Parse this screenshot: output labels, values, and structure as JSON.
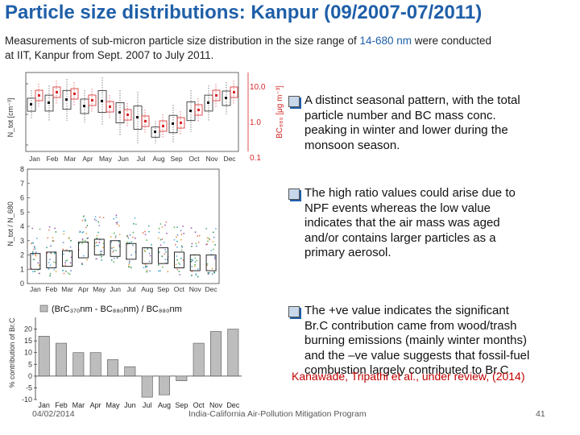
{
  "title": "Particle size distributions: Kanpur (09/2007-07/2011)",
  "intro": {
    "line1_before": "Measurements of sub-micron particle size distribution in the size range of ",
    "line1_highlight": "14-680 nm",
    "line1_after": " were conducted",
    "line2": "at IIT, Kanpur from Sept. 2007 to July 2011."
  },
  "bullets": [
    {
      "lines": [
        "A distinct seasonal pattern, with the total",
        "particle number and BC mass conc.",
        "peaking in winter and lower during the",
        "monsoon season."
      ]
    },
    {
      "lines": [
        "The high ratio values could arise due to",
        "NPF events whereas the low value",
        "indicates that the air mass was aged",
        "and/or contains larger particles as a",
        "primary aerosol."
      ]
    },
    {
      "lines": [
        "The +ve value indicates the significant",
        "Br.C contribution came from wood/trash",
        "burning emissions (mainly winter months)",
        "and the –ve value suggests that fossil-fuel",
        "combustion largely contributed to Br.C"
      ]
    }
  ],
  "citation": "Kanawade, Tripathi et al., under review, (2014)",
  "footer": {
    "date": "04/02/2014",
    "program": "India-California Air-Pollution Mitigation Program",
    "page": "41"
  },
  "months": [
    "Jan",
    "Feb",
    "Mar",
    "Apr",
    "May",
    "Jun",
    "Jul",
    "Aug",
    "Sep",
    "Oct",
    "Nov",
    "Dec"
  ],
  "colors": {
    "title": "#1f5fa8",
    "bc_axis": "#d62728",
    "citation": "#c00000"
  },
  "chart_data": [
    {
      "type": "box",
      "ylabel_left": "N_tot [cm⁻³]",
      "ylabel_right": "BC₈₈₀ [μg m⁻³]",
      "right_ticks": [
        "10.0",
        "1.0",
        "0.1"
      ],
      "categories": [
        "Jan",
        "Feb",
        "Mar",
        "Apr",
        "May",
        "Jun",
        "Jul",
        "Aug",
        "Sep",
        "Oct",
        "Nov",
        "Dec"
      ]
    },
    {
      "type": "scatter",
      "ylabel": "N_tot / N_680",
      "ylim": [
        0,
        8
      ],
      "yticks": [
        "0",
        "1",
        "2",
        "3",
        "4",
        "5",
        "6",
        "7",
        "8"
      ],
      "categories": [
        "Jan",
        "Feb",
        "Mar",
        "Apr",
        "May",
        "Jun",
        "Jul",
        "Aug",
        "Sep",
        "Oct",
        "Nov",
        "Dec"
      ]
    },
    {
      "type": "bar",
      "legend": "(BrC₃₇₀nm - BC₈₈₀nm) / BC₈₈₀nm",
      "ylabel": "% contribution of Br.C",
      "ylim": [
        -10,
        25
      ],
      "yticks": [
        "-10",
        "-5",
        "0",
        "5",
        "10",
        "15",
        "20"
      ],
      "categories": [
        "Jan",
        "Feb",
        "Mar",
        "Apr",
        "May",
        "Jun",
        "Jul",
        "Aug",
        "Sep",
        "Oct",
        "Nov",
        "Dec"
      ],
      "values": [
        17,
        14,
        10,
        10,
        7,
        4,
        -9,
        -8,
        -2,
        14,
        19,
        20
      ]
    }
  ]
}
